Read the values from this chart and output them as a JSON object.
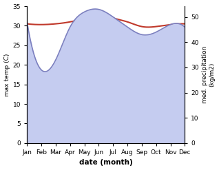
{
  "months": [
    "Jan",
    "Feb",
    "Mar",
    "Apr",
    "May",
    "Jun",
    "Jul",
    "Aug",
    "Sep",
    "Oct",
    "Nov",
    "Dec"
  ],
  "month_indices": [
    0,
    1,
    2,
    3,
    4,
    5,
    6,
    7,
    8,
    9,
    10,
    11
  ],
  "temp_max": [
    30.5,
    30.3,
    30.5,
    31.0,
    32.0,
    33.0,
    32.0,
    31.0,
    29.8,
    29.8,
    30.3,
    30.5
  ],
  "precipitation": [
    48,
    29,
    33,
    46,
    52,
    53,
    50,
    46,
    43,
    44,
    47,
    46
  ],
  "temp_color": "#c0392b",
  "precip_line_color": "#7b7fbf",
  "precip_fill_color": "#c5ccf0",
  "temp_ylim": [
    0,
    35
  ],
  "precip_ylim": [
    0,
    54.25
  ],
  "xlabel": "date (month)",
  "ylabel_left": "max temp (C)",
  "ylabel_right": "med. precipitation\n(kg/m2)",
  "temp_yticks": [
    0,
    5,
    10,
    15,
    20,
    25,
    30,
    35
  ],
  "precip_yticks": [
    0,
    10,
    20,
    30,
    40,
    50
  ],
  "background_color": "#ffffff"
}
